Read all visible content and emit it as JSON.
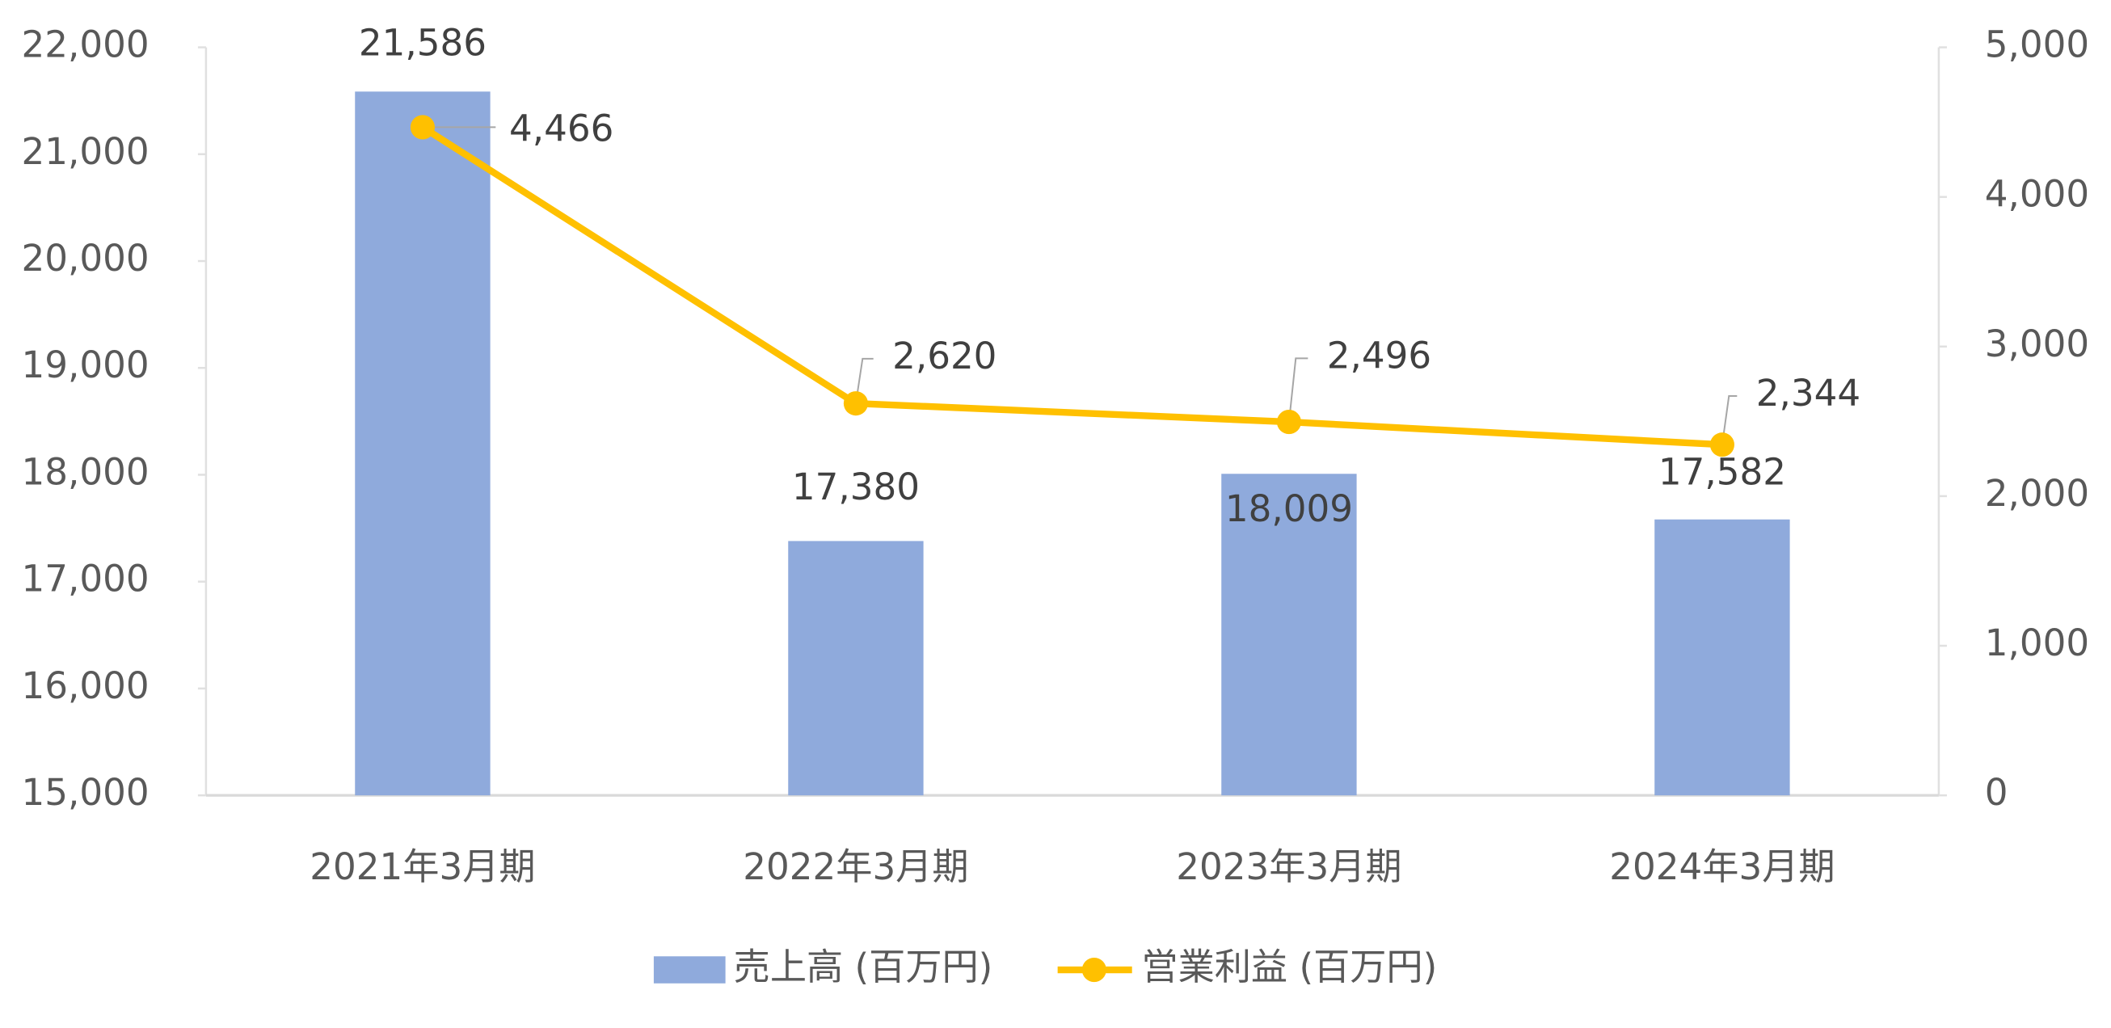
{
  "chart_data": {
    "type": "combo",
    "categories": [
      "2021年3月期",
      "2022年3月期",
      "2023年3月期",
      "2024年3月期"
    ],
    "series": [
      {
        "name": "売上高 (百万円)",
        "type": "bar",
        "color": "#8faadc",
        "values": [
          21586,
          17380,
          18009,
          17582
        ],
        "value_labels": [
          "21,586",
          "17,380",
          "18,009",
          "17,582"
        ]
      },
      {
        "name": "営業利益 (百万円)",
        "type": "line",
        "axis": "y2",
        "color": "#ffc000",
        "values": [
          4466,
          2620,
          2496,
          2344
        ],
        "value_labels": [
          "4,466",
          "2,620",
          "2,496",
          "2,344"
        ]
      }
    ],
    "ylim": [
      15000,
      22000
    ],
    "yticks": [
      {
        "value": 15000,
        "label": "15,000"
      },
      {
        "value": 16000,
        "label": "16,000"
      },
      {
        "value": 17000,
        "label": "17,000"
      },
      {
        "value": 18000,
        "label": "18,000"
      },
      {
        "value": 19000,
        "label": "19,000"
      },
      {
        "value": 20000,
        "label": "20,000"
      },
      {
        "value": 21000,
        "label": "21,000"
      },
      {
        "value": 22000,
        "label": "22,000"
      }
    ],
    "y2lim": [
      0,
      5000
    ],
    "y2ticks": [
      0,
      {
        "value": 1000,
        "label": "1,000"
      },
      {
        "value": 2000,
        "label": "2,000"
      },
      {
        "value": 3000,
        "label": "3,000"
      },
      {
        "value": 4000,
        "label": "4,000"
      },
      {
        "value": 5000,
        "label": "5,000"
      }
    ],
    "legend": "bottom"
  }
}
